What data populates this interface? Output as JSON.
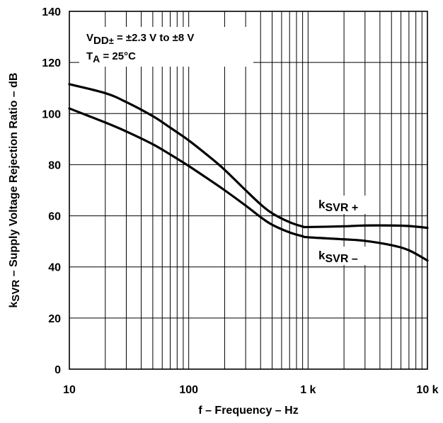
{
  "chart_data": {
    "type": "line",
    "title": "",
    "xlabel": "f – Frequency – Hz",
    "ylabel": {
      "prefix": "k",
      "sub": "SVR",
      "rest": " – Supply Voltage Rejection Ratio – dB"
    },
    "x_scale": "log",
    "xlim": [
      10,
      10000
    ],
    "ylim": [
      0,
      140
    ],
    "x_ticks": [
      {
        "value": 10,
        "label": "10"
      },
      {
        "value": 100,
        "label": "100"
      },
      {
        "value": 1000,
        "label": "1 k"
      },
      {
        "value": 10000,
        "label": "10 k"
      }
    ],
    "y_ticks": [
      0,
      20,
      40,
      60,
      80,
      100,
      120,
      140
    ],
    "grid": true,
    "annotation": {
      "line1": {
        "main": "V",
        "sub": "DD",
        "sub2": "±",
        "rest": " = ±2.3 V to ±8 V"
      },
      "line2": {
        "main": "T",
        "sub": "A",
        "rest": " = 25°C"
      }
    },
    "series": [
      {
        "name": {
          "main": "k",
          "sub": "SVR +"
        },
        "x": [
          10,
          20,
          30,
          50,
          70,
          100,
          150,
          200,
          300,
          400,
          500,
          700,
          900,
          1000,
          2000,
          3000,
          5000,
          7000,
          10000
        ],
        "y": [
          111.5,
          108,
          104.5,
          99,
          94.5,
          89.5,
          83,
          78,
          70,
          64.5,
          61,
          57.5,
          55.8,
          55.6,
          55.9,
          56.2,
          56.2,
          56,
          55.3
        ]
      },
      {
        "name": {
          "main": "k",
          "sub": "SVR –"
        },
        "x": [
          10,
          20,
          30,
          50,
          70,
          100,
          150,
          200,
          300,
          400,
          500,
          700,
          900,
          1000,
          2000,
          3000,
          5000,
          7000,
          10000
        ],
        "y": [
          102,
          96.5,
          93,
          88,
          84,
          79.5,
          74,
          70,
          64,
          59.5,
          56.5,
          53.5,
          52,
          51.6,
          50.8,
          50.2,
          48.5,
          46.5,
          42.5
        ]
      }
    ]
  }
}
